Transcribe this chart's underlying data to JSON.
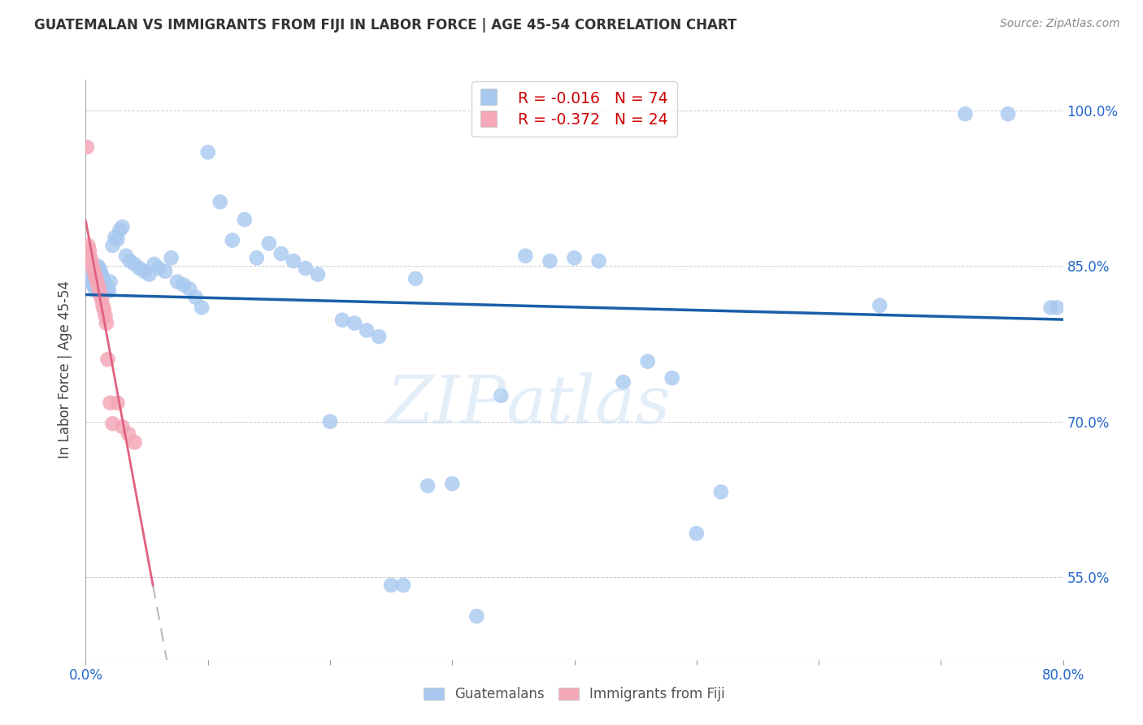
{
  "title": "GUATEMALAN VS IMMIGRANTS FROM FIJI IN LABOR FORCE | AGE 45-54 CORRELATION CHART",
  "source": "Source: ZipAtlas.com",
  "ylabel": "In Labor Force | Age 45-54",
  "x_min": 0.0,
  "x_max": 0.8,
  "y_min": 0.47,
  "y_max": 1.03,
  "y_ticks": [
    0.55,
    0.7,
    0.85,
    1.0
  ],
  "y_tick_labels": [
    "55.0%",
    "70.0%",
    "85.0%",
    "100.0%"
  ],
  "x_ticks": [
    0.0,
    0.1,
    0.2,
    0.3,
    0.4,
    0.5,
    0.6,
    0.7,
    0.8
  ],
  "legend_r_blue": "-0.016",
  "legend_n_blue": "74",
  "legend_r_pink": "-0.372",
  "legend_n_pink": "24",
  "blue_color": "#a8c8f0",
  "pink_color": "#f4a8b8",
  "blue_line_color": "#1a5fa8",
  "pink_line_color": "#e06080",
  "trend_line_color": "#cccccc",
  "blue_x": [
    0.002,
    0.004,
    0.005,
    0.006,
    0.007,
    0.008,
    0.009,
    0.01,
    0.011,
    0.012,
    0.013,
    0.014,
    0.015,
    0.016,
    0.017,
    0.018,
    0.019,
    0.02,
    0.022,
    0.024,
    0.026,
    0.028,
    0.03,
    0.033,
    0.036,
    0.04,
    0.044,
    0.048,
    0.052,
    0.056,
    0.06,
    0.065,
    0.07,
    0.075,
    0.08,
    0.085,
    0.09,
    0.095,
    0.1,
    0.11,
    0.12,
    0.13,
    0.14,
    0.15,
    0.16,
    0.17,
    0.18,
    0.19,
    0.2,
    0.21,
    0.22,
    0.23,
    0.24,
    0.25,
    0.26,
    0.27,
    0.28,
    0.3,
    0.32,
    0.34,
    0.36,
    0.38,
    0.4,
    0.42,
    0.44,
    0.46,
    0.48,
    0.5,
    0.52,
    0.65,
    0.72,
    0.755,
    0.79,
    0.795
  ],
  "blue_y": [
    0.84,
    0.838,
    0.835,
    0.832,
    0.83,
    0.828,
    0.826,
    0.85,
    0.848,
    0.845,
    0.842,
    0.838,
    0.835,
    0.832,
    0.83,
    0.828,
    0.826,
    0.835,
    0.87,
    0.878,
    0.876,
    0.885,
    0.888,
    0.86,
    0.855,
    0.852,
    0.848,
    0.845,
    0.842,
    0.852,
    0.848,
    0.845,
    0.858,
    0.835,
    0.832,
    0.828,
    0.82,
    0.81,
    0.96,
    0.912,
    0.875,
    0.895,
    0.858,
    0.872,
    0.862,
    0.855,
    0.848,
    0.842,
    0.7,
    0.798,
    0.795,
    0.788,
    0.782,
    0.542,
    0.542,
    0.838,
    0.638,
    0.64,
    0.512,
    0.725,
    0.86,
    0.855,
    0.858,
    0.855,
    0.738,
    0.758,
    0.742,
    0.592,
    0.632,
    0.812,
    0.997,
    0.997,
    0.81,
    0.81
  ],
  "pink_x": [
    0.001,
    0.002,
    0.003,
    0.004,
    0.005,
    0.006,
    0.007,
    0.008,
    0.009,
    0.01,
    0.011,
    0.012,
    0.013,
    0.014,
    0.015,
    0.016,
    0.017,
    0.018,
    0.02,
    0.022,
    0.026,
    0.03,
    0.035,
    0.04
  ],
  "pink_y": [
    0.965,
    0.87,
    0.865,
    0.858,
    0.852,
    0.848,
    0.844,
    0.84,
    0.836,
    0.832,
    0.828,
    0.822,
    0.818,
    0.812,
    0.808,
    0.802,
    0.795,
    0.76,
    0.718,
    0.698,
    0.718,
    0.695,
    0.688,
    0.68
  ],
  "blue_slope": -0.016,
  "blue_intercept": 0.832,
  "pink_slope_steep": -8.5,
  "pink_intercept_steep": 0.865
}
